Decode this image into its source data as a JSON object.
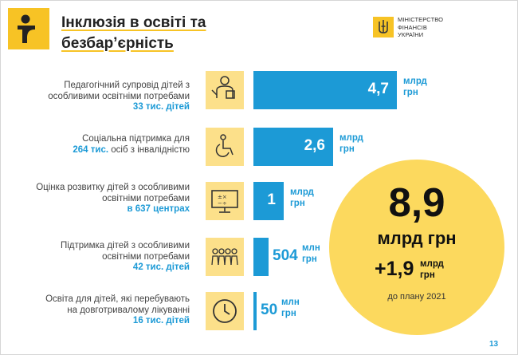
{
  "header": {
    "title_line1": "Інклюзія в освіті та",
    "title_line2": "безбар’єрність"
  },
  "ministry": {
    "line1": "МІНІСТЕРСТВО",
    "line2": "ФІНАНСІВ",
    "line3": "УКРАЇНИ"
  },
  "rows": [
    {
      "desc1": "Педагогічний супровід дітей з",
      "desc2": "особливими освітніми потребами",
      "highlight": "33 тис. дітей",
      "value_label": "4,7",
      "unit1": "млрд",
      "unit2": "грн",
      "icon": "teacher-icon"
    },
    {
      "desc1": "Соціальна підтримка для",
      "highlight": "264 тис.",
      "desc2_rest": " осіб з інвалідністю",
      "value_label": "2,6",
      "unit1": "млрд",
      "unit2": "грн",
      "icon": "wheelchair-icon"
    },
    {
      "desc1": "Оцінка розвитку дітей з особливими",
      "desc2": "освітніми потребами",
      "highlight": "в 637 центрах",
      "value_label": "1",
      "unit1": "млрд",
      "unit2": "грн",
      "icon": "monitor-icon"
    },
    {
      "desc1": "Підтримка дітей з особливими",
      "desc2": "освітніми потребами",
      "highlight": "42 тис. дітей",
      "value_label": "504",
      "unit1": "млн",
      "unit2": "грн",
      "icon": "children-group-icon"
    },
    {
      "desc1": "Освіта для дітей, які перебувають",
      "desc2": "на довготривалому лікуванні",
      "highlight": "16 тис. дітей",
      "value_label": "50",
      "unit1": "млн",
      "unit2": "грн",
      "icon": "clock-icon"
    }
  ],
  "summary": {
    "total": "8,9",
    "total_unit": "млрд грн",
    "increase": "+1,9",
    "increase_unit1": "млрд",
    "increase_unit2": "грн",
    "note": "до плану 2021"
  },
  "page_number": "13",
  "colors": {
    "accent_blue": "#1c9ad6",
    "accent_yellow": "#f7c325",
    "icon_bg": "#fce08a",
    "circle_bg": "#fcd95e"
  },
  "chart_data": {
    "type": "bar",
    "orientation": "horizontal",
    "categories": [
      "Педагогічний супровід дітей з особливими освітніми потребами",
      "Соціальна підтримка для осіб з інвалідністю",
      "Оцінка розвитку дітей з особливими освітніми потребами",
      "Підтримка дітей з особливими освітніми потребами",
      "Освіта для дітей, які перебувають на довготривалому лікуванні"
    ],
    "values": [
      4.7,
      2.6,
      1.0,
      0.504,
      0.05
    ],
    "value_labels": [
      "4,7 млрд грн",
      "2,6 млрд грн",
      "1 млрд грн",
      "504 млн грн",
      "50 млн грн"
    ],
    "unit": "млрд грн",
    "title": "Інклюзія в освіті та безбар’єрність"
  }
}
